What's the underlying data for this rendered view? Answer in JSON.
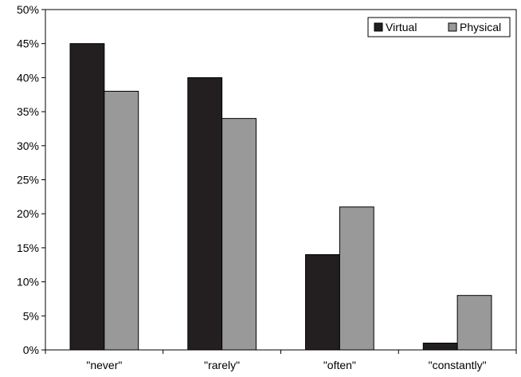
{
  "chart_data": {
    "type": "bar",
    "categories": [
      "\"never\"",
      "\"rarely\"",
      "\"often\"",
      "\"constantly\""
    ],
    "series": [
      {
        "name": "Virtual",
        "values": [
          45,
          40,
          14,
          1
        ],
        "color": "#231f20"
      },
      {
        "name": "Physical",
        "values": [
          38,
          34,
          21,
          8
        ],
        "color": "#999999"
      }
    ],
    "ylim": [
      0,
      50
    ],
    "y_ticks": [
      "0%",
      "5%",
      "10%",
      "15%",
      "20%",
      "25%",
      "30%",
      "35%",
      "40%",
      "45%",
      "50%"
    ],
    "y_tick_values": [
      0,
      5,
      10,
      15,
      20,
      25,
      30,
      35,
      40,
      45,
      50
    ],
    "title": "",
    "xlabel": "",
    "ylabel": "",
    "grid": false,
    "legend_position": "top-right"
  }
}
